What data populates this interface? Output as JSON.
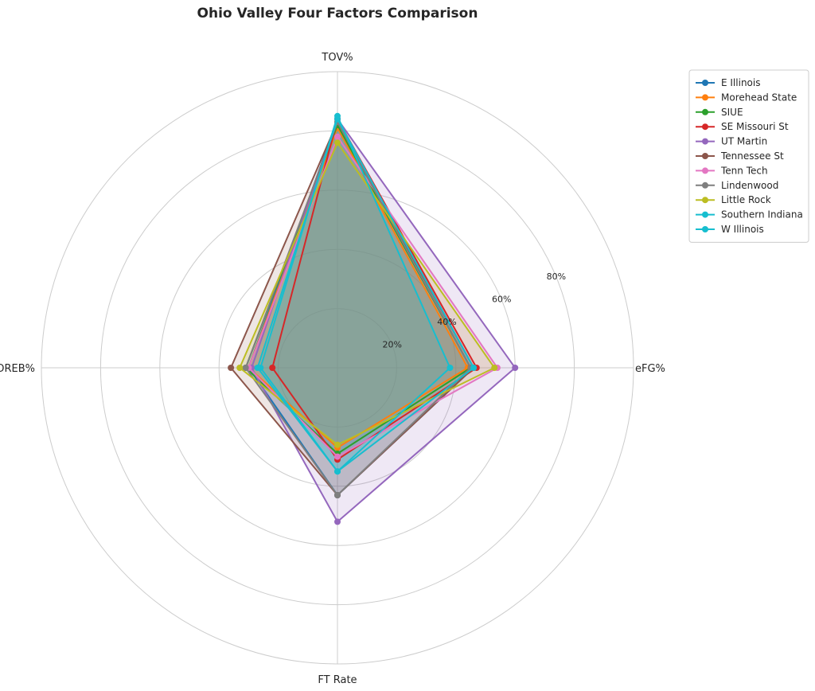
{
  "chart_data": {
    "type": "radar",
    "title": "Ohio Valley Four Factors Comparison",
    "axes": [
      "eFG%",
      "TOV%",
      "OREB%",
      "FT Rate"
    ],
    "radial_range": [
      0,
      100
    ],
    "radial_ticks": [
      20,
      40,
      60,
      80
    ],
    "radial_tick_labels": [
      "20%",
      "40%",
      "60%",
      "80%"
    ],
    "grid": true,
    "legend_position": "upper-right-outside",
    "series": [
      {
        "name": "E Illinois",
        "color": "#1f77b4",
        "values": [
          46,
          84,
          30,
          43
        ]
      },
      {
        "name": "Morehead State",
        "color": "#ff7f0e",
        "values": [
          44,
          81,
          30,
          27
        ]
      },
      {
        "name": "SIUE",
        "color": "#2ca02c",
        "values": [
          45,
          82,
          31,
          29
        ]
      },
      {
        "name": "SE Missouri St",
        "color": "#d62728",
        "values": [
          47,
          84,
          22,
          31
        ]
      },
      {
        "name": "UT Martin",
        "color": "#9467bd",
        "values": [
          60,
          84,
          29,
          52
        ]
      },
      {
        "name": "Tennessee St",
        "color": "#8c564b",
        "values": [
          46,
          83,
          36,
          43
        ]
      },
      {
        "name": "Tenn Tech",
        "color": "#e377c2",
        "values": [
          54,
          78,
          30,
          30
        ]
      },
      {
        "name": "Lindenwood",
        "color": "#7f7f7f",
        "values": [
          45,
          83,
          31,
          43
        ]
      },
      {
        "name": "Little Rock",
        "color": "#bcbd22",
        "values": [
          53,
          76,
          33,
          26
        ]
      },
      {
        "name": "Southern Indiana",
        "color": "#17becf",
        "values": [
          38,
          85,
          26,
          35
        ]
      },
      {
        "name": "W Illinois",
        "color": "#17becf",
        "values": [
          46,
          84,
          27,
          35
        ]
      }
    ]
  }
}
